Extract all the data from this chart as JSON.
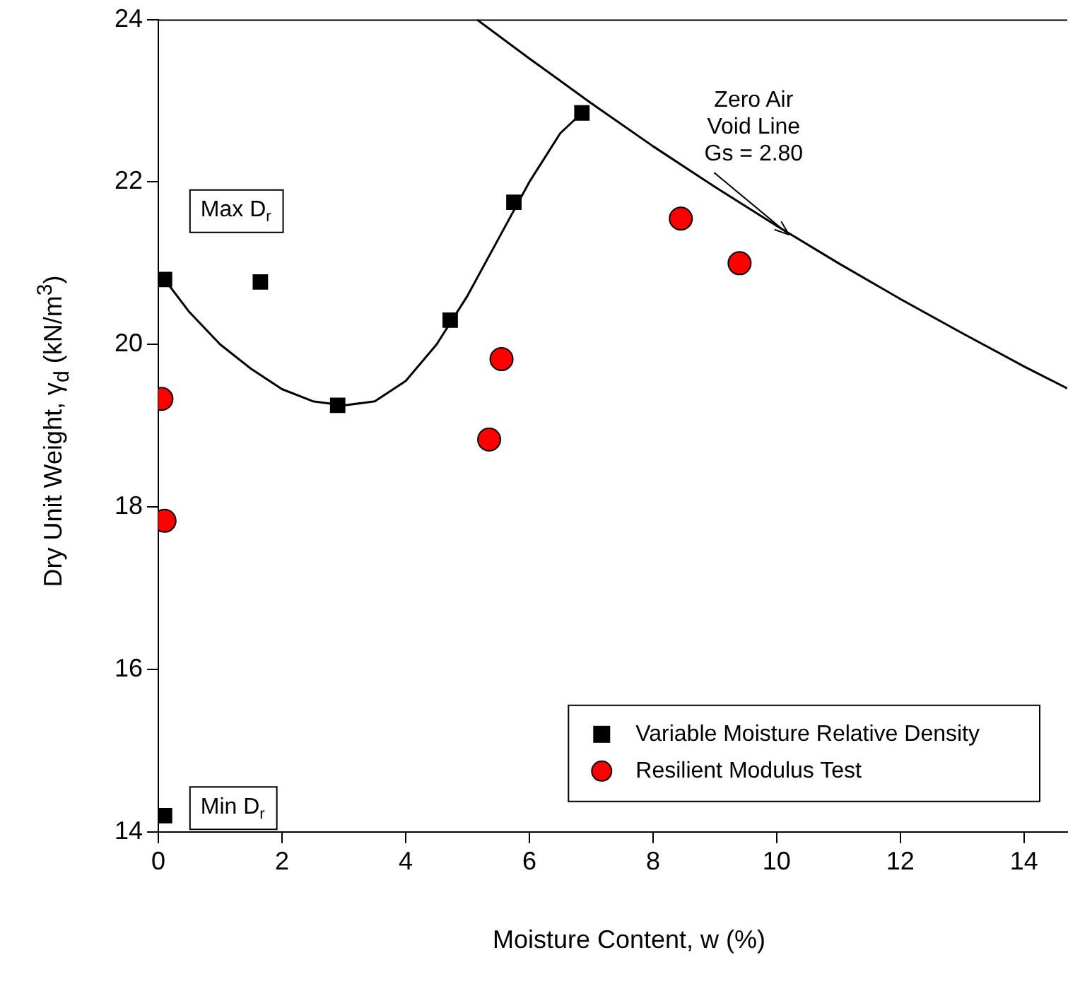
{
  "chart_data": {
    "type": "scatter",
    "xlabel": "Moisture Content, w (%)",
    "ylabel": "Dry Unit Weight, γ$_{d}$ (kN/m$^{3}$)",
    "xlim": [
      0,
      14.7
    ],
    "ylim": [
      14,
      24
    ],
    "xticks": [
      0,
      2,
      4,
      6,
      8,
      10,
      12,
      14
    ],
    "yticks": [
      14,
      16,
      18,
      20,
      22,
      24
    ],
    "grid": false,
    "legend": "bottom right",
    "series": [
      {
        "name": "Variable Moisture Relative Density",
        "marker": "square",
        "color": "#000000",
        "x": [
          0.1,
          1.65,
          2.9,
          4.72,
          5.75,
          6.85,
          0.1
        ],
        "values": [
          20.8,
          20.77,
          19.25,
          20.3,
          21.75,
          22.85,
          14.2
        ]
      },
      {
        "name": "Resilient Modulus Test",
        "marker": "circle",
        "color": "#ff0000",
        "x": [
          0.05,
          0.1,
          5.35,
          5.55,
          8.45,
          9.4
        ],
        "values": [
          19.33,
          17.83,
          18.83,
          19.82,
          21.55,
          21.0
        ]
      },
      {
        "type": "line",
        "marker": "none",
        "color": "#000000",
        "x": [
          0.1,
          0.5,
          1,
          1.5,
          2,
          2.5,
          3,
          3.5,
          4,
          4.5,
          5,
          5.5,
          6,
          6.5,
          6.85
        ],
        "values": [
          20.8,
          20.4,
          20.0,
          19.7,
          19.45,
          19.3,
          19.25,
          19.3,
          19.55,
          20.0,
          20.6,
          21.3,
          22.0,
          22.6,
          22.85
        ]
      },
      {
        "type": "line",
        "marker": "none",
        "color": "#000000",
        "x": [
          5.15,
          6,
          7,
          8,
          9,
          10,
          11,
          12,
          13,
          14,
          14.7
        ],
        "values": [
          24.0,
          23.52,
          22.97,
          22.44,
          21.94,
          21.46,
          21.0,
          20.56,
          20.14,
          19.73,
          19.46
        ]
      }
    ],
    "annotations": [
      "Max D$_{r}$",
      "Min D$_{r}$",
      {
        "text": "Zero Air Void Line Gs = 2.80",
        "x": 10.2,
        "y": 21.35
      }
    ]
  }
}
